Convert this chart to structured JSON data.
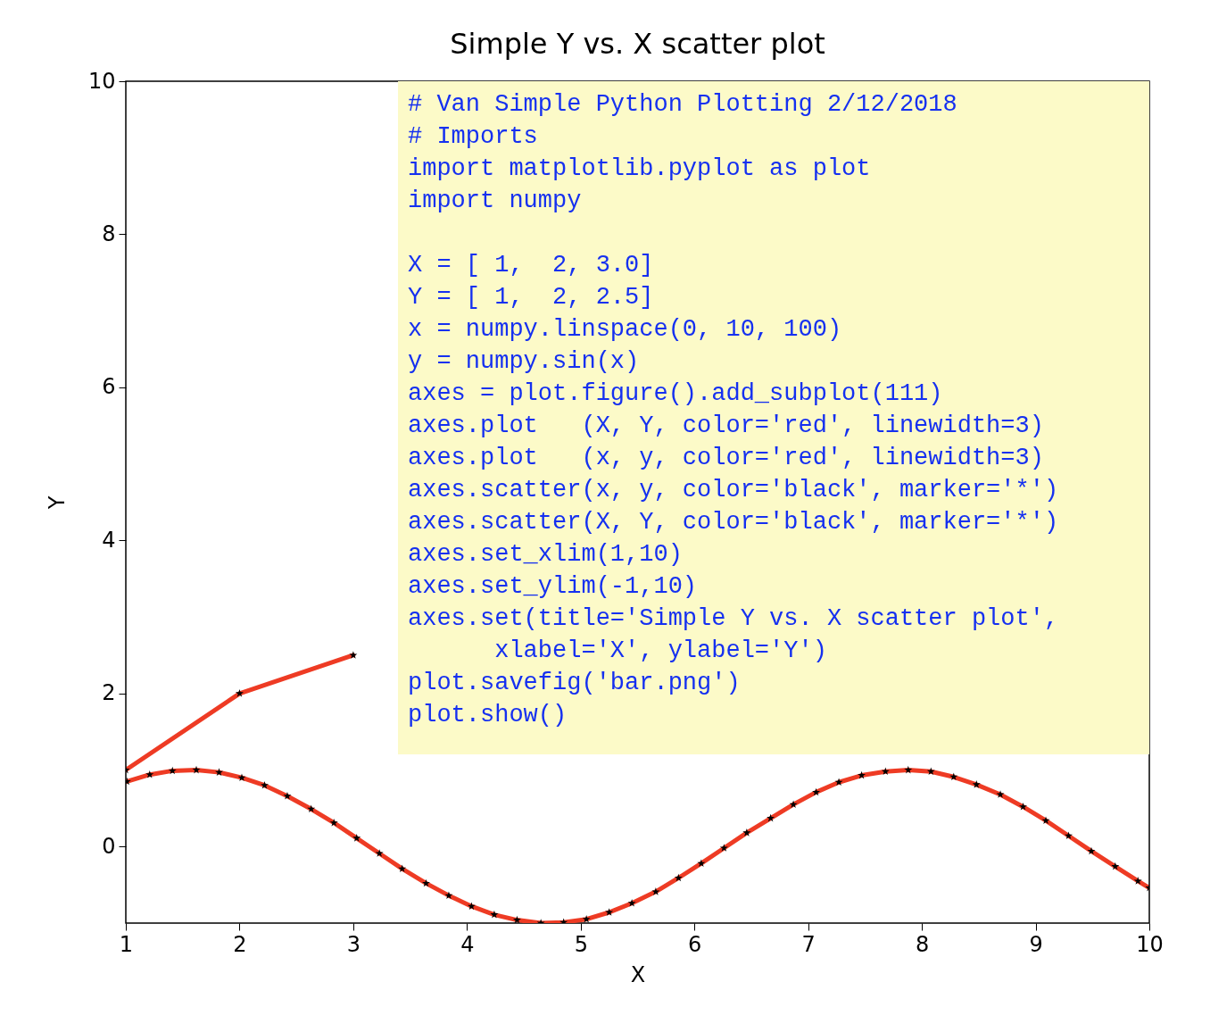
{
  "chart_data": {
    "type": "line",
    "title": "Simple Y vs. X scatter plot",
    "xlabel": "X",
    "ylabel": "Y",
    "xlim": [
      1,
      10
    ],
    "ylim": [
      -1,
      10
    ],
    "xticks": [
      1,
      2,
      3,
      4,
      5,
      6,
      7,
      8,
      9,
      10
    ],
    "yticks": [
      0,
      2,
      4,
      6,
      8,
      10
    ],
    "line_style": "solid",
    "grid": false,
    "series": [
      {
        "color": "#ee3b24",
        "marker": "none",
        "x": [
          1,
          2,
          3
        ],
        "values": [
          1,
          2,
          2.5
        ]
      },
      {
        "color": "#ee3b24",
        "marker": "none",
        "x": [
          1.01,
          1.21,
          1.41,
          1.62,
          1.82,
          2.02,
          2.22,
          2.42,
          2.63,
          2.83,
          3.03,
          3.23,
          3.43,
          3.64,
          3.84,
          4.04,
          4.24,
          4.44,
          4.65,
          4.85,
          5.05,
          5.25,
          5.45,
          5.66,
          5.86,
          6.06,
          6.26,
          6.46,
          6.67,
          6.87,
          7.07,
          7.27,
          7.47,
          7.68,
          7.88,
          8.08,
          8.28,
          8.48,
          8.69,
          8.89,
          9.09,
          9.29,
          9.49,
          9.7,
          9.9,
          10
        ],
        "values": [
          0.85,
          0.94,
          0.99,
          1.0,
          0.97,
          0.9,
          0.8,
          0.66,
          0.49,
          0.31,
          0.11,
          -0.09,
          -0.29,
          -0.48,
          -0.64,
          -0.78,
          -0.89,
          -0.96,
          -1.0,
          -0.99,
          -0.95,
          -0.86,
          -0.74,
          -0.59,
          -0.41,
          -0.22,
          -0.02,
          0.18,
          0.37,
          0.55,
          0.71,
          0.84,
          0.93,
          0.98,
          1.0,
          0.98,
          0.91,
          0.81,
          0.68,
          0.52,
          0.34,
          0.14,
          -0.06,
          -0.26,
          -0.45,
          -0.54
        ]
      },
      {
        "type": "scatter",
        "marker": "star",
        "color": "#000000",
        "x": [
          1,
          2,
          3
        ],
        "values": [
          1,
          2,
          2.5
        ]
      },
      {
        "type": "scatter",
        "marker": "star",
        "color": "#000000",
        "x": [
          1.01,
          1.21,
          1.41,
          1.62,
          1.82,
          2.02,
          2.22,
          2.42,
          2.63,
          2.83,
          3.03,
          3.23,
          3.43,
          3.64,
          3.84,
          4.04,
          4.24,
          4.44,
          4.65,
          4.85,
          5.05,
          5.25,
          5.45,
          5.66,
          5.86,
          6.06,
          6.26,
          6.46,
          6.67,
          6.87,
          7.07,
          7.27,
          7.47,
          7.68,
          7.88,
          8.08,
          8.28,
          8.48,
          8.69,
          8.89,
          9.09,
          9.29,
          9.49,
          9.7,
          9.9,
          10
        ],
        "values": [
          0.85,
          0.94,
          0.99,
          1.0,
          0.97,
          0.9,
          0.8,
          0.66,
          0.49,
          0.31,
          0.11,
          -0.09,
          -0.29,
          -0.48,
          -0.64,
          -0.78,
          -0.89,
          -0.96,
          -1.0,
          -0.99,
          -0.95,
          -0.86,
          -0.74,
          -0.59,
          -0.41,
          -0.22,
          -0.02,
          0.18,
          0.37,
          0.55,
          0.71,
          0.84,
          0.93,
          0.98,
          1.0,
          0.98,
          0.91,
          0.81,
          0.68,
          0.52,
          0.34,
          0.14,
          -0.06,
          -0.26,
          -0.45,
          -0.54
        ]
      }
    ],
    "annotations": [
      "# Van Simple Python Plotting 2/12/2018",
      "# Imports",
      "import matplotlib.pyplot as plot",
      "import numpy",
      "X = [ 1,  2, 3.0]",
      "Y = [ 1,  2, 2.5]",
      "x = numpy.linspace(0, 10, 100)",
      "y = numpy.sin(x)",
      "axes = plot.figure().add_subplot(111)",
      "axes.plot   (X, Y, color='red', linewidth=3)",
      "axes.plot   (x, y, color='red', linewidth=3)",
      "axes.scatter(x, y, color='black', marker='*')",
      "axes.scatter(X, Y, color='black', marker='*')",
      "axes.set_xlim(1,10)",
      "axes.set_ylim(-1,10)",
      "axes.set(title='Simple Y vs. X scatter plot',",
      "      xlabel='X', ylabel='Y')",
      "plot.savefig('bar.png')",
      "plot.show()"
    ]
  }
}
